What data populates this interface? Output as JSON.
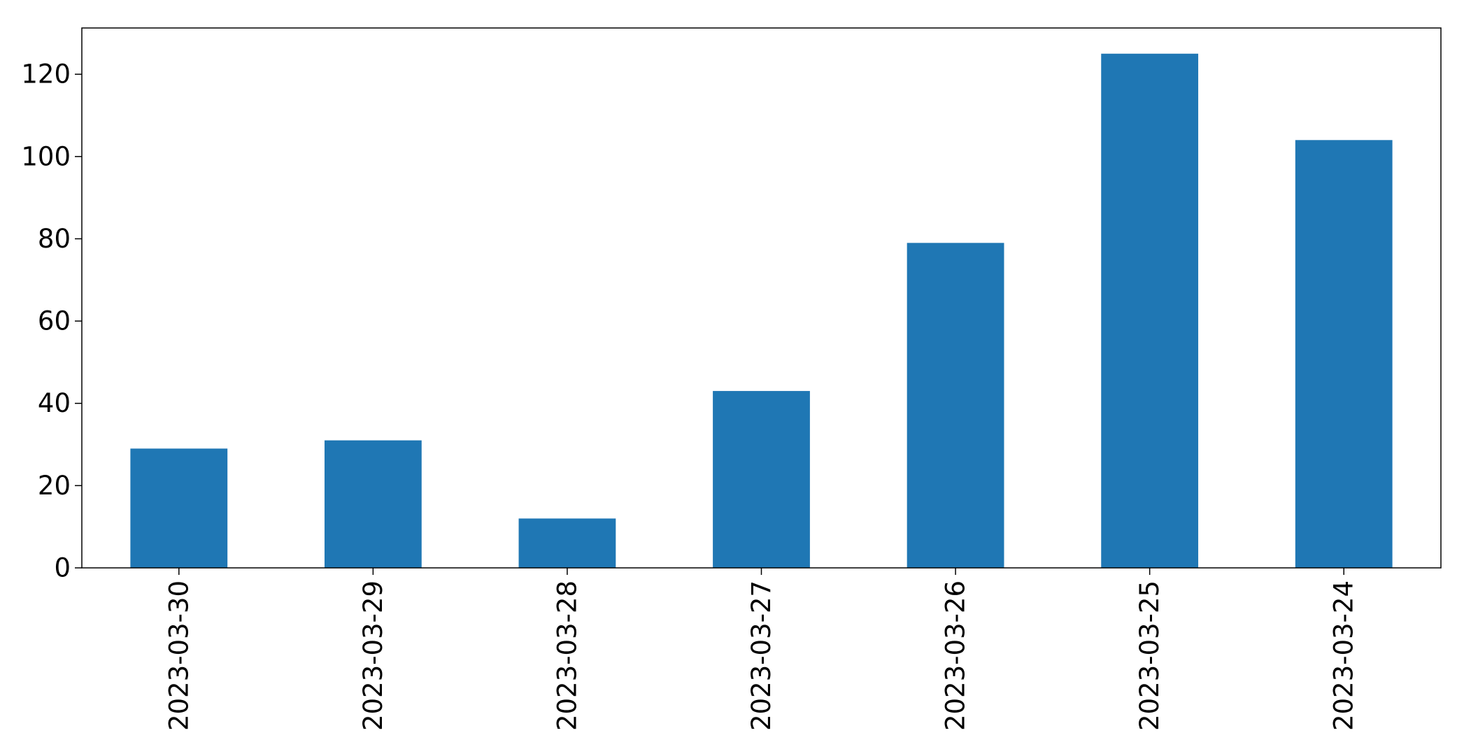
{
  "chart_data": {
    "type": "bar",
    "title": "",
    "xlabel": "",
    "ylabel": "",
    "categories": [
      "2023-03-30",
      "2023-03-29",
      "2023-03-28",
      "2023-03-27",
      "2023-03-26",
      "2023-03-25",
      "2023-03-24"
    ],
    "values": [
      29,
      31,
      12,
      43,
      79,
      125,
      104
    ],
    "ylim": [
      0,
      131.25
    ],
    "yticks": [
      0,
      20,
      40,
      60,
      80,
      100,
      120
    ],
    "bar_color": "#1f77b4",
    "grid": false,
    "legend": "none"
  }
}
